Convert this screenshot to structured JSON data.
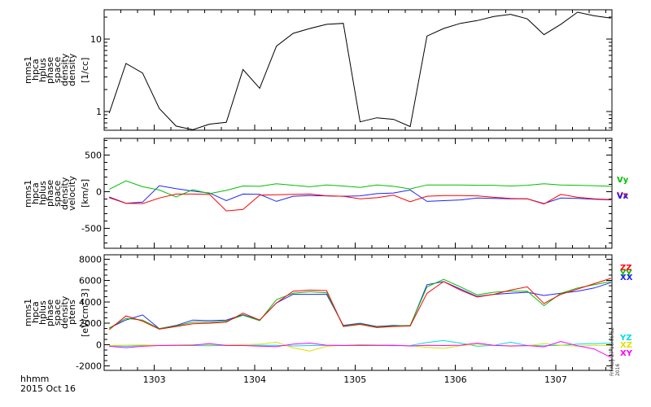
{
  "window": {
    "background": "#ffffff",
    "foreground": "#000000"
  },
  "x_axis": {
    "label": "hhmm",
    "date_label": "2015 Oct 16",
    "tick_values": [
      1303,
      1304,
      1305,
      1306,
      1307
    ],
    "tick_labels": [
      "1303",
      "1304",
      "1305",
      "1306",
      "1307"
    ],
    "range": [
      1302.5,
      1307.56
    ],
    "minor_step_minutes": 0.16667
  },
  "timestamp_vertical": "Fri May 27 16:06:52 2016",
  "panels": [
    {
      "name": "density",
      "side_label": "mms1\nhpca\nhplus\nphase\nspace\ndensity\ndensity",
      "unit": "[1/cc]",
      "scale": "log",
      "y_tick_labels": [
        "10",
        "1"
      ],
      "right_labels": []
    },
    {
      "name": "velocity",
      "side_label": "mms1\nhpca\nhplus\nphase\nspace\ndensity\nvelocity",
      "unit": "[km/s]",
      "scale": "linear",
      "y_tick_labels": [
        "500",
        "0",
        "-500"
      ],
      "right_labels": [
        {
          "text": "Vy",
          "color": "#00c000",
          "y": 223
        },
        {
          "text": "Vz",
          "color": "#ff0000",
          "y": 242
        },
        {
          "text": "Vx",
          "color": "#2222ff",
          "y": 243
        }
      ]
    },
    {
      "name": "ptens",
      "side_label": "mms1\nhpca\nhplus\nphase\nspace\ndensity\nptens",
      "unit": "[eV/cm^3]",
      "scale": "linear",
      "y_tick_labels": [
        "8000",
        "6000",
        "4000",
        "2000",
        "0",
        "-2000"
      ],
      "right_labels": [
        {
          "text": "ZZ",
          "color": "#ff0000",
          "y": 331
        },
        {
          "text": "YY",
          "color": "#00c000",
          "y": 338
        },
        {
          "text": "XX",
          "color": "#2222ff",
          "y": 343
        },
        {
          "text": "YZ",
          "color": "#00dddd",
          "y": 417
        },
        {
          "text": "XZ",
          "color": "#e0e000",
          "y": 426
        },
        {
          "text": "XY",
          "color": "#ff00ff",
          "y": 436
        }
      ]
    }
  ],
  "chart_data": [
    {
      "type": "line",
      "title": "mms1 hpca hplus phase space density density",
      "ylabel": "[1/cc]",
      "yscale": "log",
      "ylim": [
        0.552,
        25.4
      ],
      "xlim": [
        1302.5,
        1307.56
      ],
      "x": [
        1302.55,
        1302.717,
        1302.883,
        1303.05,
        1303.217,
        1303.383,
        1303.55,
        1303.717,
        1303.883,
        1304.05,
        1304.217,
        1304.383,
        1304.55,
        1304.717,
        1304.883,
        1305.05,
        1305.217,
        1305.383,
        1305.55,
        1305.717,
        1305.883,
        1306.05,
        1306.217,
        1306.383,
        1306.55,
        1306.717,
        1306.883,
        1307.05,
        1307.217,
        1307.383,
        1307.55
      ],
      "series": [
        {
          "name": "density",
          "color": "#000000",
          "values": [
            0.95,
            4.6,
            3.4,
            1.1,
            0.63,
            0.56,
            0.67,
            0.71,
            3.8,
            2.1,
            8.0,
            12.0,
            14.0,
            16.0,
            16.5,
            0.72,
            0.82,
            0.78,
            0.62,
            11.0,
            14.0,
            16.5,
            18.0,
            20.5,
            22.0,
            19.0,
            11.5,
            16.0,
            23.5,
            21.0,
            19.5
          ]
        }
      ]
    },
    {
      "type": "line",
      "title": "mms1 hpca hplus phase space density velocity",
      "ylabel": "[km/s]",
      "yscale": "linear",
      "ylim": [
        -770,
        730
      ],
      "xlim": [
        1302.5,
        1307.56
      ],
      "x": [
        1302.55,
        1302.717,
        1302.883,
        1303.05,
        1303.217,
        1303.383,
        1303.55,
        1303.717,
        1303.883,
        1304.05,
        1304.217,
        1304.383,
        1304.55,
        1304.717,
        1304.883,
        1305.05,
        1305.217,
        1305.383,
        1305.55,
        1305.717,
        1305.883,
        1306.05,
        1306.217,
        1306.383,
        1306.55,
        1306.717,
        1306.883,
        1307.05,
        1307.217,
        1307.383,
        1307.55
      ],
      "series": [
        {
          "name": "Vx",
          "color": "#2222ff",
          "values": [
            -70,
            -155,
            -140,
            85,
            45,
            10,
            -15,
            -120,
            -30,
            -35,
            -130,
            -60,
            -50,
            -55,
            -60,
            -55,
            -25,
            -15,
            25,
            -130,
            -120,
            -110,
            -85,
            -90,
            -95,
            -95,
            -160,
            -85,
            -90,
            -100,
            -110
          ]
        },
        {
          "name": "Vy",
          "color": "#00c000",
          "values": [
            35,
            150,
            70,
            25,
            -70,
            30,
            -25,
            20,
            80,
            75,
            110,
            90,
            70,
            95,
            80,
            60,
            95,
            75,
            40,
            95,
            95,
            95,
            90,
            90,
            80,
            90,
            110,
            95,
            90,
            85,
            75
          ]
        },
        {
          "name": "Vz",
          "color": "#ff0000",
          "values": [
            -80,
            -155,
            -160,
            -85,
            -30,
            -30,
            -35,
            -260,
            -240,
            -45,
            -40,
            -35,
            -30,
            -55,
            -60,
            -95,
            -80,
            -45,
            -135,
            -60,
            -50,
            -50,
            -55,
            -75,
            -90,
            -95,
            -165,
            -35,
            -75,
            -95,
            -105
          ]
        }
      ]
    },
    {
      "type": "line",
      "title": "mms1 hpca hplus phase space density ptens",
      "ylabel": "[eV/cm^3]",
      "yscale": "linear",
      "ylim": [
        -2400,
        8400
      ],
      "xlim": [
        1302.5,
        1307.56
      ],
      "x": [
        1302.55,
        1302.717,
        1302.883,
        1303.05,
        1303.217,
        1303.383,
        1303.55,
        1303.717,
        1303.883,
        1304.05,
        1304.217,
        1304.383,
        1304.55,
        1304.717,
        1304.883,
        1305.05,
        1305.217,
        1305.383,
        1305.55,
        1305.717,
        1305.883,
        1306.05,
        1306.217,
        1306.383,
        1306.55,
        1306.717,
        1306.883,
        1307.05,
        1307.217,
        1307.383,
        1307.55
      ],
      "series": [
        {
          "name": "YZ",
          "color": "#00dddd",
          "values": [
            -100,
            -150,
            -80,
            -60,
            -50,
            -80,
            -100,
            -60,
            -80,
            -50,
            -60,
            -120,
            -80,
            -60,
            -50,
            -80,
            -60,
            -100,
            -80,
            200,
            380,
            150,
            -150,
            -60,
            230,
            -80,
            -100,
            -60,
            50,
            100,
            150
          ]
        },
        {
          "name": "XZ",
          "color": "#e0e000",
          "values": [
            -80,
            -40,
            -20,
            -50,
            -30,
            0,
            20,
            -20,
            0,
            50,
            230,
            -300,
            -600,
            -150,
            -50,
            0,
            -30,
            -50,
            -100,
            -250,
            -350,
            -100,
            50,
            -50,
            -150,
            -100,
            100,
            -50,
            -150,
            -50,
            -80
          ]
        },
        {
          "name": "XY",
          "color": "#ff00ff",
          "values": [
            -150,
            -280,
            -150,
            -80,
            -60,
            -50,
            100,
            -80,
            -80,
            -130,
            -180,
            50,
            150,
            -50,
            -80,
            -50,
            -60,
            -50,
            -120,
            -60,
            -80,
            -50,
            150,
            -60,
            -120,
            -80,
            -200,
            300,
            -100,
            -400,
            -1200
          ]
        },
        {
          "name": "XX",
          "color": "#2222ff",
          "values": [
            1550,
            2310,
            2780,
            1500,
            1800,
            2300,
            2250,
            2300,
            2800,
            2300,
            3900,
            4700,
            4700,
            4700,
            1800,
            2000,
            1700,
            1800,
            1750,
            5600,
            5900,
            5200,
            4500,
            4700,
            4800,
            4900,
            4600,
            4800,
            5000,
            5300,
            5800
          ]
        },
        {
          "name": "YY",
          "color": "#00c000",
          "values": [
            1550,
            2460,
            2300,
            1500,
            1750,
            2100,
            2100,
            2200,
            2750,
            2250,
            4200,
            4800,
            4950,
            4850,
            1750,
            1950,
            1650,
            1750,
            1800,
            5400,
            6100,
            5400,
            4650,
            4900,
            5000,
            5000,
            3650,
            4800,
            5300,
            5600,
            5900
          ]
        },
        {
          "name": "ZZ",
          "color": "#ff0000",
          "values": [
            1400,
            2690,
            2200,
            1450,
            1700,
            1950,
            2000,
            2100,
            2950,
            2300,
            3900,
            5000,
            5100,
            5050,
            1700,
            1900,
            1600,
            1700,
            1750,
            4800,
            5900,
            5100,
            4450,
            4700,
            5100,
            5400,
            3850,
            4700,
            5200,
            5700,
            6200
          ]
        }
      ]
    }
  ]
}
